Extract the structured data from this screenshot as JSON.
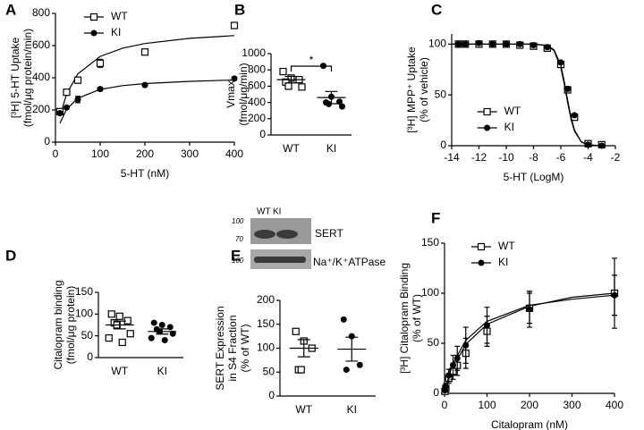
{
  "chart_data": [
    {
      "label": "A",
      "type": "scatter",
      "xlabel": "5-HT (nM)",
      "ylabel": [
        "[³H] 5-HT Uptake",
        "(fmol/μg protein/min)"
      ],
      "x": [
        10,
        25,
        50,
        100,
        200,
        400
      ],
      "xlim": [
        0,
        400
      ],
      "xticks": [
        0,
        100,
        200,
        300,
        400
      ],
      "ylim": [
        0,
        800
      ],
      "yticks": [
        0,
        200,
        400,
        600,
        800
      ],
      "legend": "upper left",
      "series": [
        {
          "name": "WT",
          "marker": "square-open",
          "color": "#000000",
          "values": [
            190,
            310,
            385,
            490,
            560,
            725
          ],
          "errors": [
            15,
            15,
            15,
            25,
            15,
            10
          ],
          "fit": {
            "x": [
              10,
              25,
              50,
              100,
              150,
              200,
              300,
              400
            ],
            "values": [
              160,
              300,
              424,
              533,
              584,
              613,
              645,
              662
            ]
          }
        },
        {
          "name": "KI",
          "marker": "circle-filled",
          "color": "#000000",
          "values": [
            180,
            215,
            265,
            330,
            355,
            395
          ],
          "errors": [
            10,
            10,
            20,
            10,
            10,
            10
          ],
          "fit": {
            "x": [
              10,
              25,
              50,
              100,
              150,
              200,
              300,
              400
            ],
            "values": [
              117,
              205,
              273,
              328,
              351,
              364,
              378,
              386
            ]
          }
        }
      ]
    },
    {
      "label": "B",
      "type": "strip",
      "ylabel": [
        "Vmax",
        "(fmol/μg/min)"
      ],
      "ylim": [
        0,
        1000
      ],
      "yticks": [
        0,
        200,
        400,
        600,
        800,
        1000
      ],
      "significance": "*",
      "groups": [
        {
          "name": "WT",
          "marker": "square-open",
          "color": "#000000",
          "values": [
            780,
            700,
            680,
            650,
            600,
            590
          ],
          "mean": 680,
          "sem": 40
        },
        {
          "name": "KI",
          "marker": "circle-filled",
          "color": "#000000",
          "values": [
            850,
            470,
            410,
            400,
            380,
            350
          ],
          "mean": 460,
          "sem": 75
        }
      ]
    },
    {
      "label": "C",
      "type": "scatter",
      "xlabel": "5-HT (LogM)",
      "ylabel": [
        "[³H] MPP⁺ Uptake",
        "(% of vehicle)"
      ],
      "x": [
        -13.5,
        -13,
        -12,
        -11,
        -10,
        -9,
        -8,
        -7,
        -6,
        -5.5,
        -5,
        -4,
        -3
      ],
      "xlim": [
        -14,
        -2
      ],
      "xticks": [
        -14,
        -12,
        -10,
        -8,
        -6,
        -4,
        -2
      ],
      "ylim": [
        0,
        110
      ],
      "yticks": [
        0,
        50,
        100
      ],
      "legend": "lower left",
      "series": [
        {
          "name": "WT",
          "marker": "square-open",
          "color": "#000000",
          "values": [
            100,
            100,
            100,
            100,
            100,
            99,
            98,
            96,
            80,
            55,
            28,
            2,
            1
          ],
          "fit": {
            "x": [
              -14,
              -10,
              -8,
              -7,
              -6.5,
              -6,
              -5.75,
              -5.5,
              -5.25,
              -5,
              -4.5,
              -4,
              -3
            ],
            "values": [
              100,
              100,
              100,
              98.5,
              93.6,
              76.8,
              61,
              42.6,
              26,
              14.3,
              3.6,
              0.8,
              0
            ]
          }
        },
        {
          "name": "KI",
          "marker": "circle-filled",
          "color": "#000000",
          "values": [
            100,
            100,
            101,
            100,
            100,
            100,
            99,
            97,
            82,
            56,
            30,
            1,
            0
          ],
          "fit": {
            "x": [
              -14,
              -10,
              -8,
              -7,
              -6.5,
              -6,
              -5.75,
              -5.5,
              -5.25,
              -5,
              -4.5,
              -4,
              -3
            ],
            "values": [
              100,
              100,
              100,
              98.8,
              94.5,
              79,
              63.5,
              45,
              28,
              15.5,
              4,
              0.9,
              0
            ]
          }
        }
      ]
    },
    {
      "label": "D",
      "type": "strip",
      "ylabel": [
        "Citalopram binding",
        "(fmol/μg protein)"
      ],
      "ylim": [
        0,
        150
      ],
      "yticks": [
        0,
        50,
        100,
        150
      ],
      "groups": [
        {
          "name": "WT",
          "marker": "square-open",
          "color": "#000000",
          "values": [
            100,
            95,
            85,
            80,
            75,
            55,
            45,
            35
          ],
          "mean": 75,
          "sem": 9
        },
        {
          "name": "KI",
          "marker": "circle-filled",
          "color": "#000000",
          "values": [
            80,
            75,
            70,
            65,
            60,
            55,
            45,
            40
          ],
          "mean": 60,
          "sem": 6
        }
      ]
    },
    {
      "label": "E",
      "type": "strip",
      "ylabel": [
        "SERT Expression",
        "in S4 Fraction",
        "(% of WT)"
      ],
      "ylim": [
        0,
        200
      ],
      "yticks": [
        0,
        50,
        100,
        150,
        200
      ],
      "blot": {
        "markers": [
          "100",
          "70",
          "100"
        ],
        "lanes": [
          "WT",
          "KI"
        ],
        "bands": [
          "SERT",
          "Na⁺/K⁺ATPase"
        ]
      },
      "groups": [
        {
          "name": "WT",
          "marker": "square-open",
          "color": "#000000",
          "values": [
            135,
            115,
            100,
            55,
            55
          ],
          "mean": 100,
          "sem": 18
        },
        {
          "name": "KI",
          "marker": "circle-filled",
          "color": "#000000",
          "values": [
            160,
            125,
            65,
            55
          ],
          "mean": 98,
          "sem": 25
        }
      ]
    },
    {
      "label": "F",
      "type": "scatter",
      "xlabel": "Citalopram (nM)",
      "ylabel": [
        "[³H] Citalopram Binding",
        "(% of WT)"
      ],
      "x": [
        1,
        3,
        10,
        20,
        30,
        50,
        100,
        200,
        400
      ],
      "xlim": [
        0,
        400
      ],
      "xticks": [
        0,
        100,
        200,
        300,
        400
      ],
      "ylim": [
        0,
        150
      ],
      "yticks": [
        0,
        50,
        100,
        150
      ],
      "legend": "upper left",
      "series": [
        {
          "name": "WT",
          "marker": "square-open",
          "color": "#000000",
          "values": [
            2,
            5,
            15,
            22,
            28,
            40,
            62,
            85,
            100
          ],
          "errors": [
            1,
            2,
            5,
            8,
            10,
            15,
            15,
            15,
            35
          ],
          "fit": {
            "x": [
              0,
              5,
              10,
              20,
              50,
              100,
              200,
              300,
              400
            ],
            "values": [
              0,
              8,
              15,
              26,
              49,
              69,
              87,
              96,
              100
            ]
          }
        },
        {
          "name": "KI",
          "marker": "circle-filled",
          "color": "#000000",
          "values": [
            3,
            7,
            18,
            28,
            35,
            48,
            68,
            84,
            98
          ],
          "errors": [
            1,
            3,
            6,
            10,
            12,
            18,
            18,
            18,
            20
          ],
          "fit": {
            "x": [
              0,
              5,
              10,
              20,
              50,
              100,
              200,
              300,
              400
            ],
            "values": [
              0,
              9,
              17,
              30,
              53,
              72,
              88,
              94,
              98
            ]
          }
        }
      ]
    }
  ]
}
